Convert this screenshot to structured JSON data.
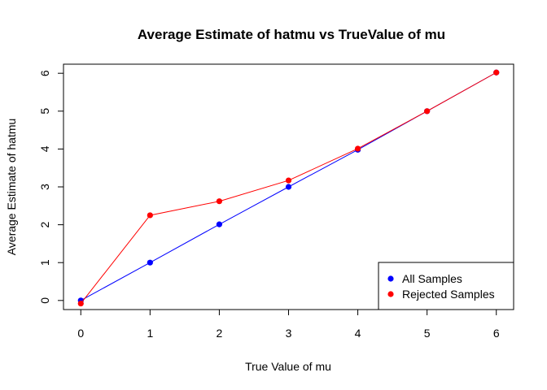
{
  "chart_data": {
    "type": "line",
    "title": "Average Estimate of hatmu vs TrueValue of mu",
    "xlabel": "True Value of mu",
    "ylabel": "Average Estimate of  hatmu",
    "xlim": [
      -0.25,
      6.25
    ],
    "ylim": [
      -0.24,
      6.24
    ],
    "x_ticks": [
      0,
      1,
      2,
      3,
      4,
      5,
      6
    ],
    "y_ticks": [
      0,
      1,
      2,
      3,
      4,
      5,
      6
    ],
    "grid": false,
    "legend_position": "bottom-right",
    "x": [
      0,
      1,
      2,
      3,
      4,
      5,
      6
    ],
    "series": [
      {
        "name": "All Samples",
        "color": "#0000ff",
        "values": [
          0.0,
          1.0,
          2.01,
          3.0,
          3.98,
          5.0,
          6.02
        ]
      },
      {
        "name": "Rejected Samples",
        "color": "#ff0000",
        "values": [
          -0.08,
          2.25,
          2.62,
          3.17,
          4.01,
          5.0,
          6.02
        ]
      }
    ]
  }
}
